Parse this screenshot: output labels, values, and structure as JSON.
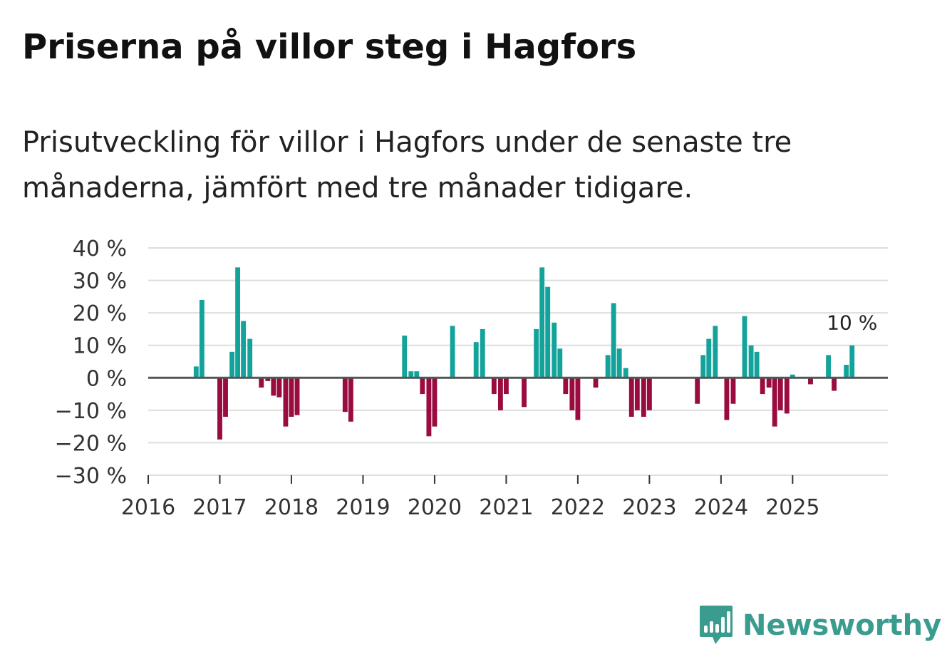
{
  "title": "Priserna på villor steg i Hagfors",
  "subtitle": "Prisutveckling för villor i Hagfors under de senaste tre månaderna, jämfört med tre månader tidigare.",
  "brand": {
    "name": "Newsworthy",
    "color": "#3a9b8f"
  },
  "colors": {
    "positive": "#14a39a",
    "negative": "#9a0b3f",
    "grid": "#dddddd",
    "zero": "#555555"
  },
  "chart_data": {
    "type": "bar",
    "title": "Priserna på villor steg i Hagfors",
    "xlabel": "",
    "ylabel": "",
    "ylim": [
      -30,
      40
    ],
    "yticks": [
      -30,
      -20,
      -10,
      0,
      10,
      20,
      30,
      40
    ],
    "ytick_labels": [
      "−30 %",
      "−20 %",
      "−10 %",
      "0 %",
      "10 %",
      "20 %",
      "30 %",
      "40 %"
    ],
    "x_range": [
      2016.0,
      2026.33
    ],
    "xticks": [
      2016,
      2017,
      2018,
      2019,
      2020,
      2021,
      2022,
      2023,
      2024,
      2025
    ],
    "xtick_labels": [
      "2016",
      "2017",
      "2018",
      "2019",
      "2020",
      "2021",
      "2022",
      "2023",
      "2024",
      "2025"
    ],
    "annotation": {
      "label": "10 %",
      "x": 2025.83,
      "y": 10
    },
    "series": [
      {
        "name": "Prisutveckling",
        "x": [
          2016.67,
          2016.75,
          2017.0,
          2017.08,
          2017.17,
          2017.25,
          2017.33,
          2017.42,
          2017.58,
          2017.67,
          2017.75,
          2017.83,
          2017.92,
          2018.0,
          2018.08,
          2018.75,
          2018.83,
          2019.58,
          2019.67,
          2019.75,
          2019.83,
          2019.92,
          2020.0,
          2020.25,
          2020.58,
          2020.67,
          2020.83,
          2020.92,
          2021.0,
          2021.25,
          2021.42,
          2021.5,
          2021.58,
          2021.67,
          2021.75,
          2021.83,
          2021.92,
          2022.0,
          2022.25,
          2022.42,
          2022.5,
          2022.58,
          2022.67,
          2022.75,
          2022.83,
          2022.92,
          2023.0,
          2023.67,
          2023.75,
          2023.83,
          2023.92,
          2024.08,
          2024.17,
          2024.33,
          2024.42,
          2024.5,
          2024.58,
          2024.67,
          2024.75,
          2024.83,
          2024.92,
          2025.0,
          2025.25,
          2025.5,
          2025.58,
          2025.75,
          2025.83
        ],
        "values": [
          3.5,
          24,
          -19,
          -12,
          8,
          34,
          17.5,
          12,
          -3,
          -1,
          -5.5,
          -6,
          -15,
          -12,
          -11.5,
          -10.5,
          -13.5,
          13,
          2,
          2,
          -5,
          -18,
          -15,
          16,
          11,
          15,
          -5,
          -10,
          -5,
          -9,
          15,
          34,
          28,
          17,
          9,
          -5,
          -10,
          -13,
          -3,
          7,
          23,
          9,
          3,
          -12,
          -10,
          -12,
          -10,
          -8,
          7,
          12,
          16,
          -13,
          -8,
          19,
          10,
          8,
          -5,
          -3,
          -15,
          -10,
          -11,
          1,
          -2,
          7,
          -4,
          4,
          10
        ]
      }
    ]
  }
}
